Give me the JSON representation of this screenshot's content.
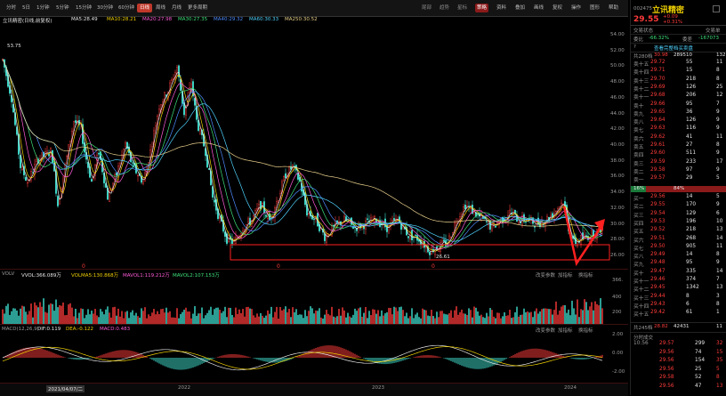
{
  "period_tabs": [
    "分时",
    "5日",
    "1分钟",
    "5分钟",
    "15分钟",
    "30分钟",
    "60分钟",
    "日线",
    "周线",
    "月线",
    "更多周期"
  ],
  "toolbar": {
    "tools": [
      "资料",
      "叠加",
      "画线",
      "复权",
      "操作",
      "图形",
      "帮助"
    ],
    "special": "策略",
    "mini": [
      "尾部",
      "趋势",
      "星标"
    ]
  },
  "indicators": {
    "title": "立讯精密(日线,前复权)",
    "ma": [
      {
        "label": "MA5:28.49",
        "color": "#e6e6e6"
      },
      {
        "label": "MA10:28.21",
        "color": "#f0d000"
      },
      {
        "label": "MA20:27.98",
        "color": "#ff5bd7"
      },
      {
        "label": "MA30:27.35",
        "color": "#3ee07b"
      },
      {
        "label": "MA40:29.32",
        "color": "#4f8cff"
      },
      {
        "label": "MA60:30.33",
        "color": "#4fd3ff"
      },
      {
        "label": "MA250:30.52",
        "color": "#e8d08a"
      }
    ]
  },
  "price_axis": [
    "54.00",
    "52.00",
    "50.00",
    "48.00",
    "46.00",
    "44.00",
    "42.00",
    "40.00",
    "38.00",
    "36.00",
    "34.00",
    "32.00",
    "30.00",
    "28.00",
    "26.00"
  ],
  "annotations": {
    "high": "53.75",
    "low": "26.61"
  },
  "volume": {
    "label": "VOLV",
    "vol": "VVOL:366.089万",
    "ma1": "VOLMA5:130.868万",
    "ma2": "MAVOL1:119.212万",
    "ma3": "MAVOL2:107.153万",
    "axis": [
      "366.",
      "400",
      "200"
    ],
    "buttons": [
      "改变参数",
      "加指标",
      "换指标"
    ]
  },
  "macd": {
    "label": "MACD(12,26,9)",
    "dif": "DIF:0.119",
    "dea": "DEA:-0.122",
    "macd": "MACD:0.483",
    "axis": [
      "2.00",
      "0.00",
      "-2.00"
    ],
    "buttons": [
      "改变参数",
      "加指标",
      "换指标"
    ]
  },
  "date_axis": [
    "2021/04/07/二",
    "2022",
    "2023",
    "2024"
  ],
  "markers": [
    "0",
    "0",
    "0"
  ],
  "stock": {
    "code": "002475",
    "name": "立讯精密",
    "price": "29.55",
    "change": "+0.09",
    "change_pct": "+0.31%"
  },
  "panel": {
    "tabs": [
      "交易状态",
      "交易单"
    ],
    "wei_bi": {
      "label": "委比",
      "value": "-66.32%",
      "label2": "委差",
      "value2": "-167073"
    },
    "level2": "查看完整档买卖盘",
    "sell_total": {
      "label": "共280档",
      "price": "30.98",
      "vol": "289510",
      "num": "132"
    },
    "sell": [
      {
        "lv": "卖十五",
        "p": "29.72",
        "v": "55",
        "n": "11"
      },
      {
        "lv": "卖十四",
        "p": "29.71",
        "v": "15",
        "n": "8"
      },
      {
        "lv": "卖十三",
        "p": "29.70",
        "v": "218",
        "n": "8"
      },
      {
        "lv": "卖十二",
        "p": "29.69",
        "v": "126",
        "n": "25"
      },
      {
        "lv": "卖十一",
        "p": "29.68",
        "v": "206",
        "n": "12"
      },
      {
        "lv": "卖十",
        "p": "29.66",
        "v": "95",
        "n": "7"
      },
      {
        "lv": "卖九",
        "p": "29.65",
        "v": "36",
        "n": "9"
      },
      {
        "lv": "卖八",
        "p": "29.64",
        "v": "126",
        "n": "9"
      },
      {
        "lv": "卖七",
        "p": "29.63",
        "v": "116",
        "n": "9"
      },
      {
        "lv": "卖六",
        "p": "29.62",
        "v": "41",
        "n": "11"
      },
      {
        "lv": "卖五",
        "p": "29.61",
        "v": "27",
        "n": "8"
      },
      {
        "lv": "卖四",
        "p": "29.60",
        "v": "511",
        "n": "9"
      },
      {
        "lv": "卖三",
        "p": "29.59",
        "v": "233",
        "n": "17"
      },
      {
        "lv": "卖二",
        "p": "29.58",
        "v": "97",
        "n": "9"
      },
      {
        "lv": "卖一",
        "p": "29.57",
        "v": "29",
        "n": "5"
      }
    ],
    "split": {
      "left": "16%",
      "right": "84%"
    },
    "buy": [
      {
        "lv": "买一",
        "p": "29.56",
        "v": "14",
        "n": "5"
      },
      {
        "lv": "买二",
        "p": "29.55",
        "v": "170",
        "n": "9"
      },
      {
        "lv": "买三",
        "p": "29.54",
        "v": "129",
        "n": "6"
      },
      {
        "lv": "买四",
        "p": "29.53",
        "v": "196",
        "n": "10"
      },
      {
        "lv": "买五",
        "p": "29.52",
        "v": "218",
        "n": "13"
      },
      {
        "lv": "买六",
        "p": "29.51",
        "v": "268",
        "n": "14"
      },
      {
        "lv": "买七",
        "p": "29.50",
        "v": "905",
        "n": "11"
      },
      {
        "lv": "买八",
        "p": "29.49",
        "v": "14",
        "n": "8"
      },
      {
        "lv": "买九",
        "p": "29.48",
        "v": "95",
        "n": "9"
      },
      {
        "lv": "买十",
        "p": "29.47",
        "v": "335",
        "n": "14"
      },
      {
        "lv": "买十一",
        "p": "29.46",
        "v": "374",
        "n": "7"
      },
      {
        "lv": "买十二",
        "p": "29.45",
        "v": "1342",
        "n": "13"
      },
      {
        "lv": "买十三",
        "p": "29.44",
        "v": "8",
        "n": "3"
      },
      {
        "lv": "买十四",
        "p": "29.43",
        "v": "6",
        "n": "8"
      },
      {
        "lv": "买十五",
        "p": "29.42",
        "v": "61",
        "n": "1"
      }
    ],
    "buy_total": {
      "label": "共245档",
      "price": "28.82",
      "vol": "42431",
      "num": "11"
    },
    "ticks_title": "分时成交",
    "ticks": [
      {
        "t": "10:56",
        "p": "29.57",
        "v": "299",
        "n": "32"
      },
      {
        "t": "",
        "p": "29.56",
        "v": "74",
        "n": "15"
      },
      {
        "t": "",
        "p": "29.56",
        "v": "154",
        "n": "35"
      },
      {
        "t": "",
        "p": "29.56",
        "v": "25",
        "n": "5"
      },
      {
        "t": "",
        "p": "29.58",
        "v": "52",
        "n": "8"
      },
      {
        "t": "",
        "p": "29.56",
        "v": "47",
        "n": "13"
      }
    ]
  },
  "colors": {
    "up": "#ff3b3b",
    "down": "#3ee07b",
    "box": "#ff2020",
    "bg": "#000000"
  }
}
